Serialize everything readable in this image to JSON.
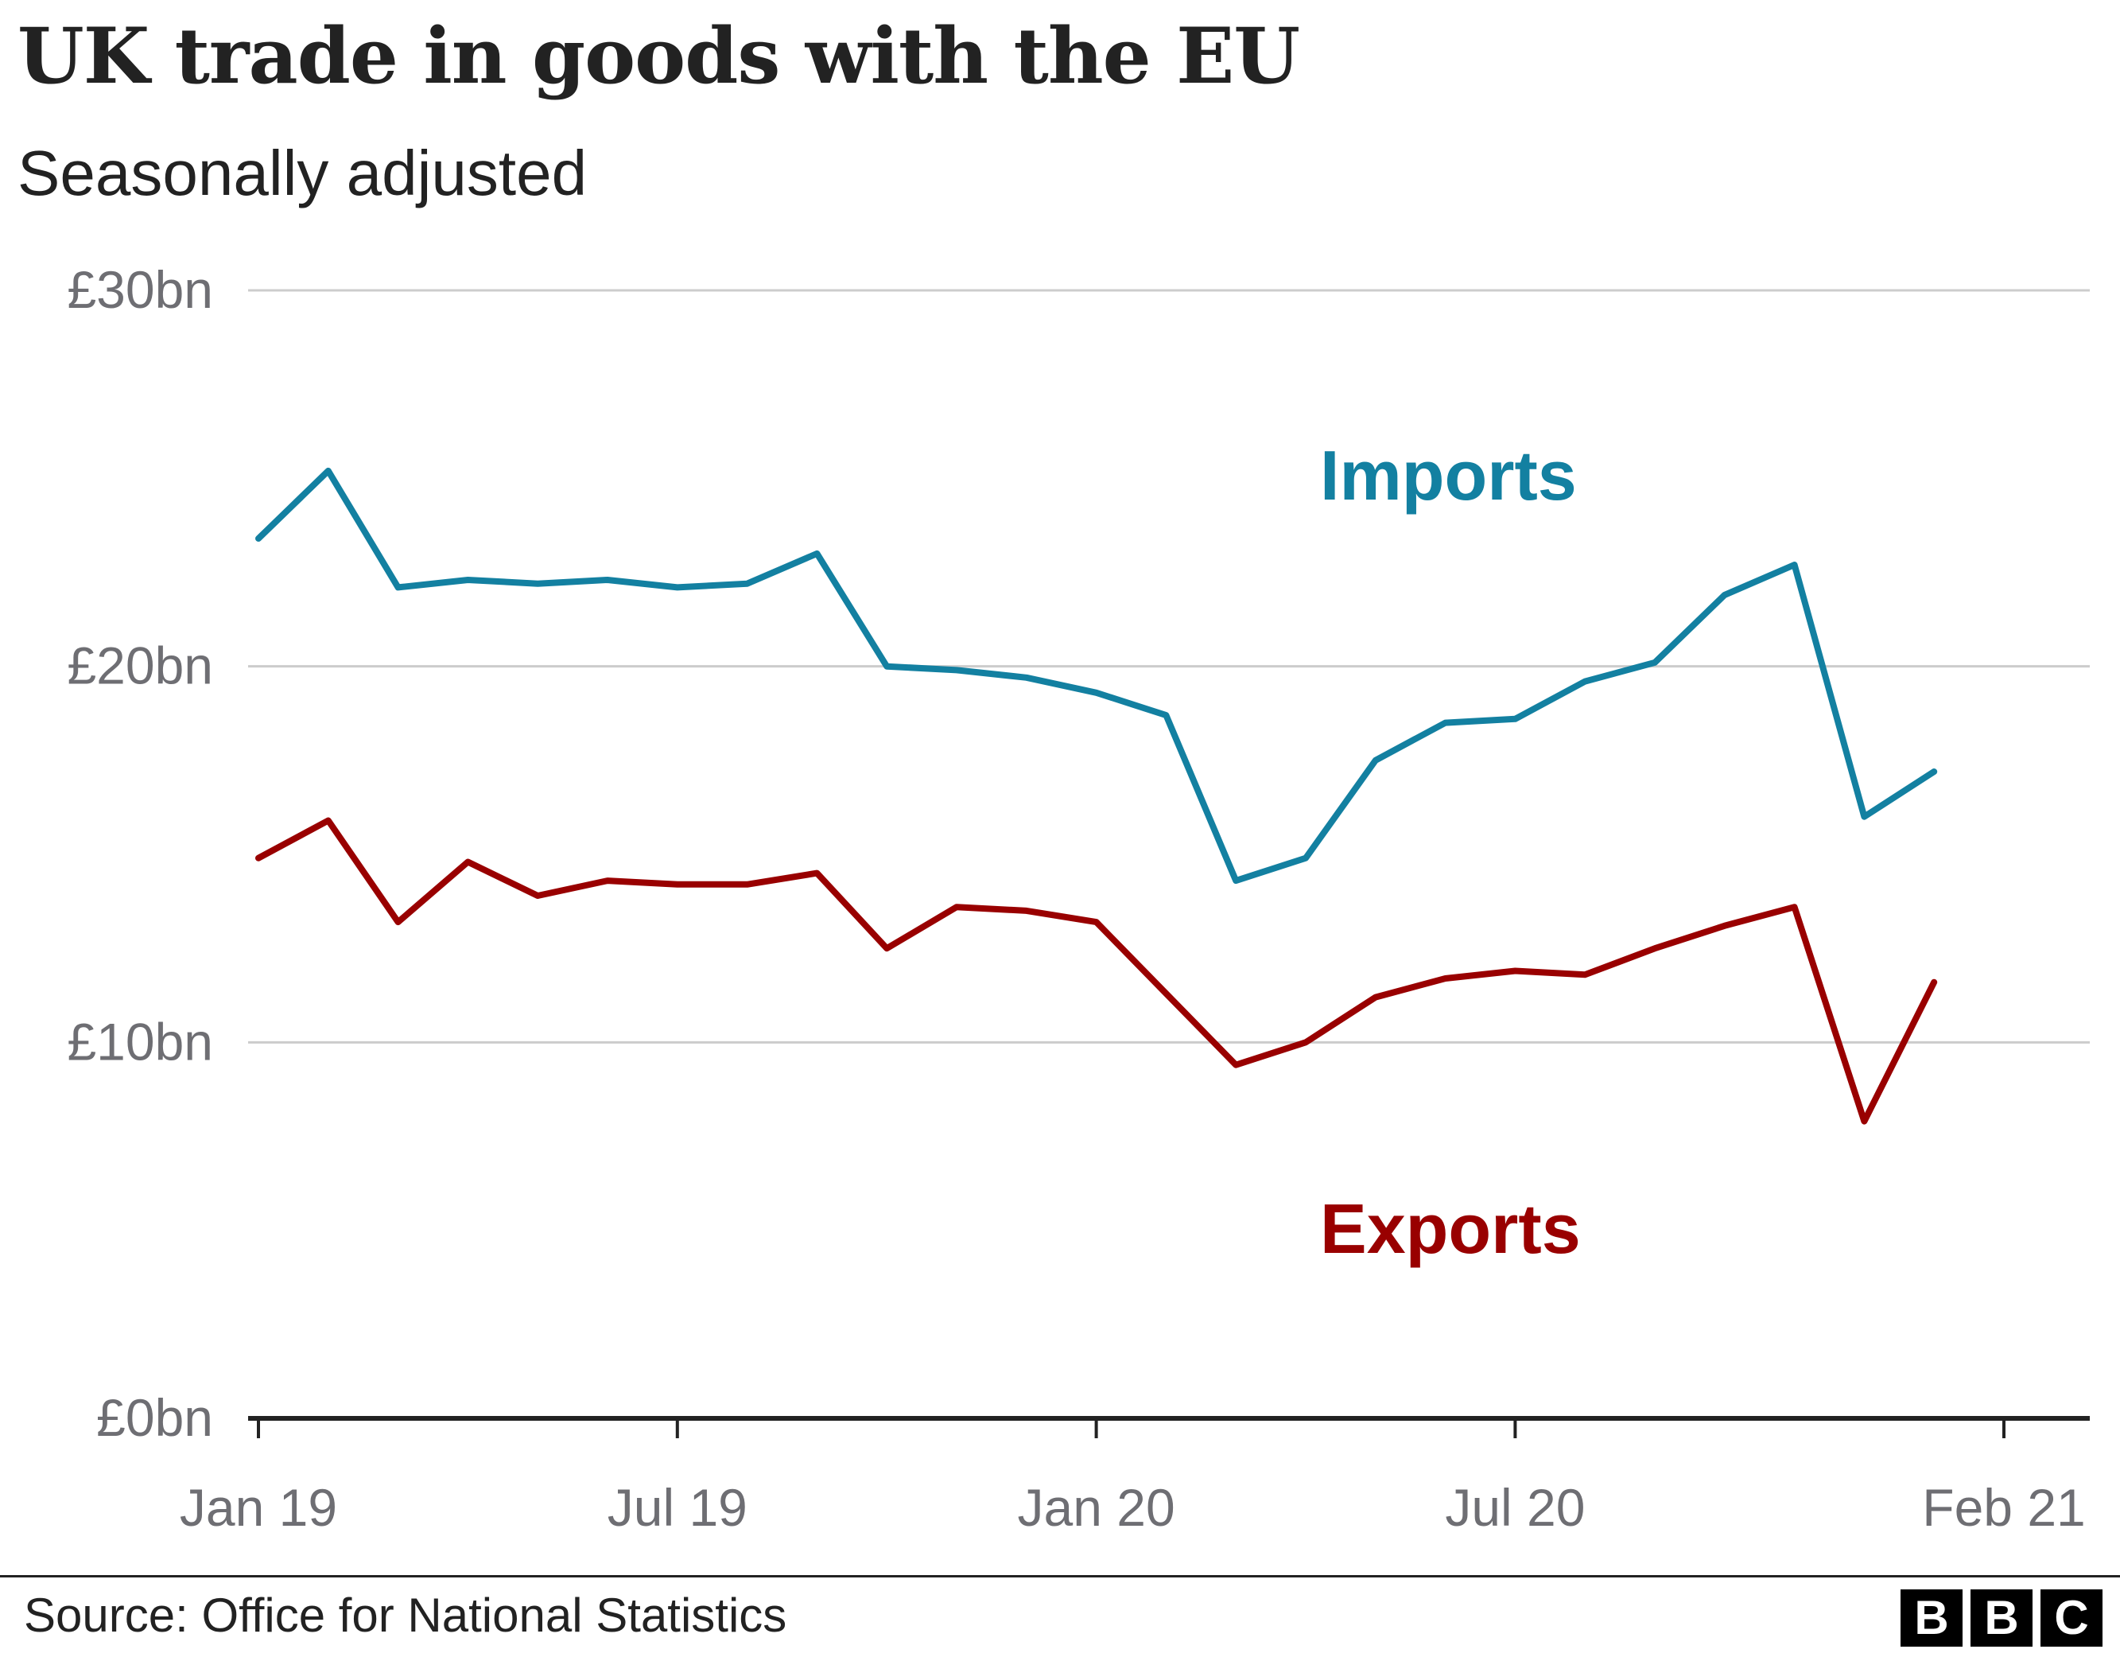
{
  "title": "UK trade in goods with the EU",
  "subtitle": "Seasonally adjusted",
  "source": "Source: Office for National Statistics",
  "logo": [
    "B",
    "B",
    "C"
  ],
  "chart_data": {
    "type": "line",
    "title": "UK trade in goods with the EU",
    "subtitle": "Seasonally adjusted",
    "x": [
      "2019-01",
      "2019-02",
      "2019-03",
      "2019-04",
      "2019-05",
      "2019-06",
      "2019-07",
      "2019-08",
      "2019-09",
      "2019-10",
      "2019-11",
      "2019-12",
      "2020-01",
      "2020-02",
      "2020-03",
      "2020-04",
      "2020-05",
      "2020-06",
      "2020-07",
      "2020-08",
      "2020-09",
      "2020-10",
      "2020-11",
      "2020-12",
      "2021-01",
      "2021-02"
    ],
    "x_tick_labels": [
      {
        "label": "Jan 19",
        "x": "2019-01"
      },
      {
        "label": "Jul 19",
        "x": "2019-07"
      },
      {
        "label": "Jan 20",
        "x": "2020-01"
      },
      {
        "label": "Jul 20",
        "x": "2020-07"
      },
      {
        "label": "Feb 21",
        "x": "2021-02"
      }
    ],
    "y_tick_labels": [
      {
        "label": "£0bn",
        "value": 0
      },
      {
        "label": "£10bn",
        "value": 10
      },
      {
        "label": "£20bn",
        "value": 20
      },
      {
        "label": "£30bn",
        "value": 30
      }
    ],
    "ylim": [
      0,
      30
    ],
    "grid": true,
    "series": [
      {
        "name": "Imports",
        "color": "#1380a1",
        "values": [
          23.4,
          25.2,
          22.1,
          22.3,
          22.2,
          22.3,
          22.1,
          22.2,
          23.0,
          20.0,
          19.9,
          19.7,
          19.3,
          18.7,
          14.3,
          14.9,
          17.5,
          18.5,
          18.6,
          19.6,
          20.1,
          21.9,
          22.7,
          16.0,
          17.2,
          null
        ]
      },
      {
        "name": "Exports",
        "color": "#990000",
        "values": [
          14.9,
          15.9,
          13.2,
          14.8,
          13.9,
          14.3,
          14.2,
          14.2,
          14.5,
          12.5,
          13.6,
          13.5,
          13.2,
          11.3,
          9.4,
          10.0,
          11.2,
          11.7,
          11.9,
          11.8,
          12.5,
          13.1,
          13.6,
          7.9,
          11.6,
          null
        ]
      }
    ]
  }
}
